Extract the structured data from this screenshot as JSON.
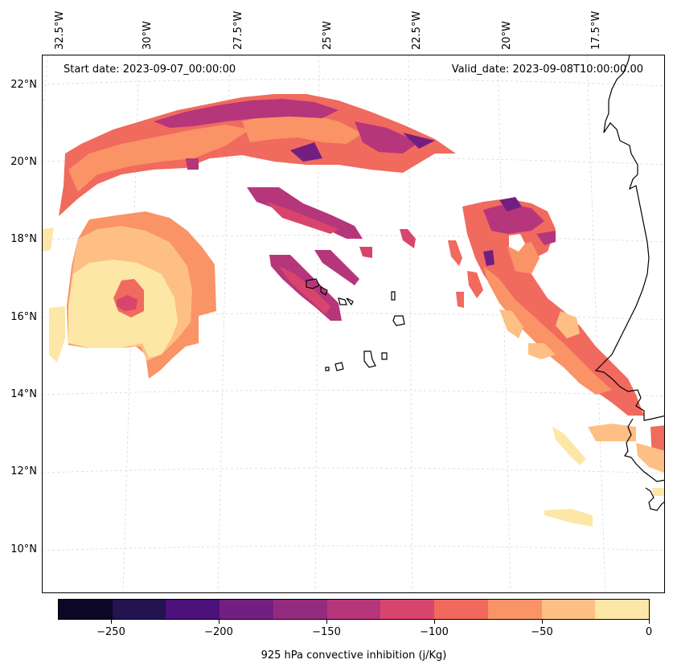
{
  "map": {
    "start_date": "Start date: 2023-09-07_00:00:00",
    "valid_date": "Valid_date: 2023-09-08T10:00:00.00",
    "lon_labels": [
      "32.5°W",
      "30°W",
      "27.5°W",
      "25°W",
      "22.5°W",
      "20°W",
      "17.5°W"
    ],
    "lat_labels": [
      "22°N",
      "20°N",
      "18°N",
      "16°N",
      "14°N",
      "12°N",
      "10°N"
    ],
    "gridlines": true
  },
  "colorbar": {
    "title": "925 hPa convective inhibition (j/Kg)",
    "tick_labels": [
      "−250",
      "−200",
      "−150",
      "−100",
      "−50",
      "0"
    ],
    "levels": [
      -275,
      -250,
      -225,
      -200,
      -175,
      -150,
      -125,
      -100,
      -75,
      -50,
      -25,
      0
    ],
    "colors": [
      "#0b0825",
      "#231350",
      "#4c127a",
      "#721f81",
      "#932b7e",
      "#b5367a",
      "#d8456c",
      "#f06a5e",
      "#fa9366",
      "#febf84",
      "#fde7a6"
    ]
  }
}
